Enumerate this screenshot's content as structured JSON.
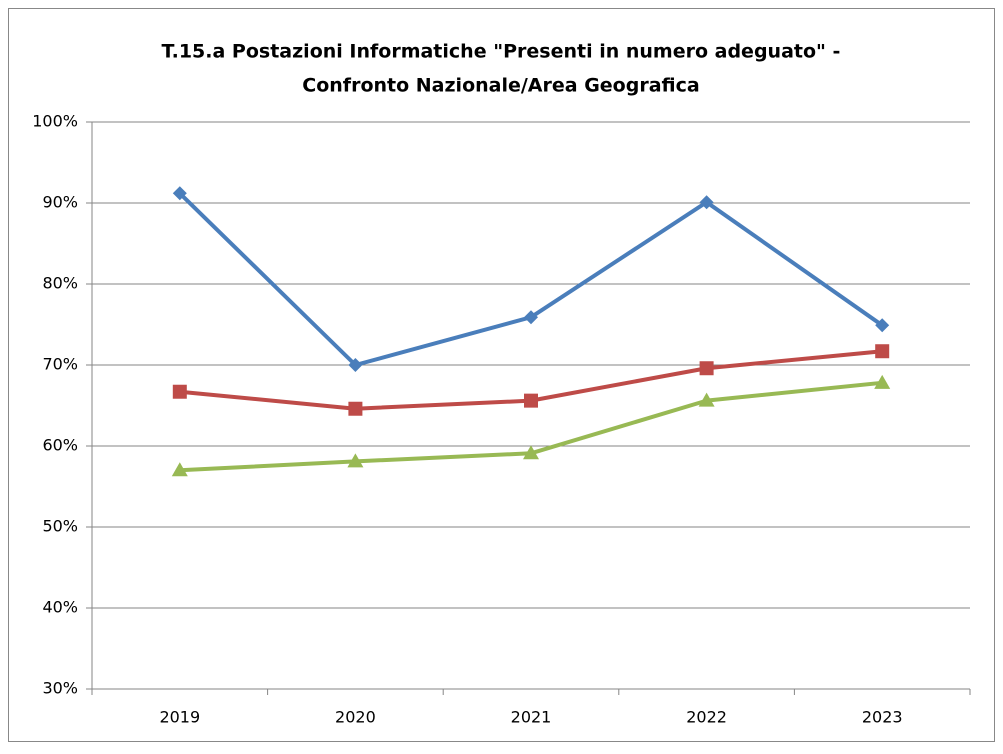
{
  "chart_data": {
    "type": "line",
    "title": [
      "T.15.a Postazioni Informatiche \"Presenti in numero adeguato\" -",
      "Confronto Nazionale/Area Geografica"
    ],
    "categories": [
      "2019",
      "2020",
      "2021",
      "2022",
      "2023"
    ],
    "series": [
      {
        "color": "#4a7ebb",
        "marker": "diamond",
        "values": [
          91.2,
          70,
          75.9,
          90.1,
          74.9
        ]
      },
      {
        "color": "#be4b48",
        "marker": "square",
        "values": [
          66.7,
          64.6,
          65.6,
          69.6,
          71.7
        ]
      },
      {
        "color": "#98b954",
        "marker": "triangle",
        "values": [
          57,
          58.1,
          59.1,
          65.6,
          67.8
        ]
      }
    ],
    "ylim": [
      30,
      100
    ],
    "yticks": [
      {
        "value": 30,
        "label": "30%"
      },
      {
        "value": 40,
        "label": "40%"
      },
      {
        "value": 50,
        "label": "50%"
      },
      {
        "value": 60,
        "label": "60%"
      },
      {
        "value": 70,
        "label": "70%"
      },
      {
        "value": 80,
        "label": "80%"
      },
      {
        "value": 90,
        "label": "90%"
      },
      {
        "value": 100,
        "label": "100%"
      }
    ],
    "grid": true
  }
}
